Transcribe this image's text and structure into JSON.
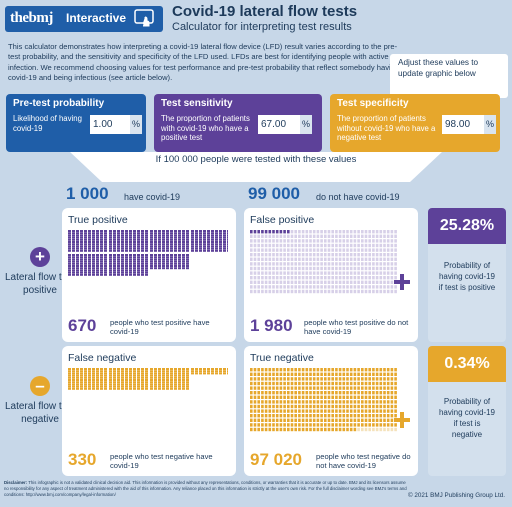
{
  "header": {
    "logo": "thebmj",
    "logo_tag": "Interactive",
    "title": "Covid-19 lateral flow tests",
    "subtitle": "Calculator for interpreting test results"
  },
  "intro": "This calculator demonstrates how interpreting a covid-19 lateral flow device (LFD) result varies according to the pre-test probability, and the sensitivity and specificity of the LFD used. LFDs are best for identifying people with active infection. We recommend choosing values for test performance and pre-test probability that reflect somebody having covid-19 and being infectious (see article below).",
  "tooltip": "Adjust these values to update graphic below",
  "inputs": {
    "pretest": {
      "title": "Pre-test probability",
      "desc": "Likelihood of having covid-19",
      "value": "1.00",
      "unit": "%"
    },
    "sensitivity": {
      "title": "Test sensitivity",
      "desc": "The proportion of patients with covid-19 who have a positive test",
      "value": "67.00",
      "unit": "%"
    },
    "specificity": {
      "title": "Test specificity",
      "desc": "The proportion of patients without covid-19 who have a negative test",
      "value": "98.00",
      "unit": "%"
    }
  },
  "funnel_text": "If 100 000 people were tested with these values",
  "totals": {
    "covid_num": "1 000",
    "covid_label": "have covid-19",
    "nocovid_num": "99 000",
    "nocovid_label": "do not have covid-19"
  },
  "rows": {
    "positive_label": "Lateral flow test positive",
    "negative_label": "Lateral flow test negative",
    "plus_symbol": "+",
    "minus_symbol": "–"
  },
  "panels": {
    "tp": {
      "title": "True positive",
      "num": "670",
      "desc": "people who test positive have covid-19",
      "fraction": 0.67
    },
    "fp": {
      "title": "False positive",
      "num": "1 980",
      "desc": "people who test positive do not have covid-19",
      "fraction": 0.02
    },
    "fn": {
      "title": "False negative",
      "num": "330",
      "desc": "people who test negative have covid-19",
      "fraction": 0.33
    },
    "tn": {
      "title": "True negative",
      "num": "97 020",
      "desc": "people who test negative do not have covid-19",
      "fraction": 0.98
    }
  },
  "results": {
    "ppv": {
      "value": "25.28%",
      "text": "Probability of having covid-19 if test is positive"
    },
    "npv": {
      "value": "0.34%",
      "text": "Probability of having covid-19 if test is negative"
    }
  },
  "footer": {
    "disclaimer_label": "Disclaimer:",
    "disclaimer": "This infographic is not a validated clinical decision aid. This information is provided without any representations, conditions, or warranties that it is accurate or up to date. BMJ and its licensors assume no responsibility for any aspect of treatment administered with the aid of this information. Any reliance placed on this information is strictly at the user's own risk. For the full disclaimer wording see BMJ's terms and conditions: http://www.bmj.com/company/legal-information/",
    "copyright": "© 2021 BMJ Publishing Group Ltd."
  },
  "colors": {
    "blue": "#1f5ea8",
    "purple": "#5d4199",
    "orange": "#e6a72c",
    "light_purple": "#d7d0e8",
    "light_orange": "#f4e2bb"
  }
}
